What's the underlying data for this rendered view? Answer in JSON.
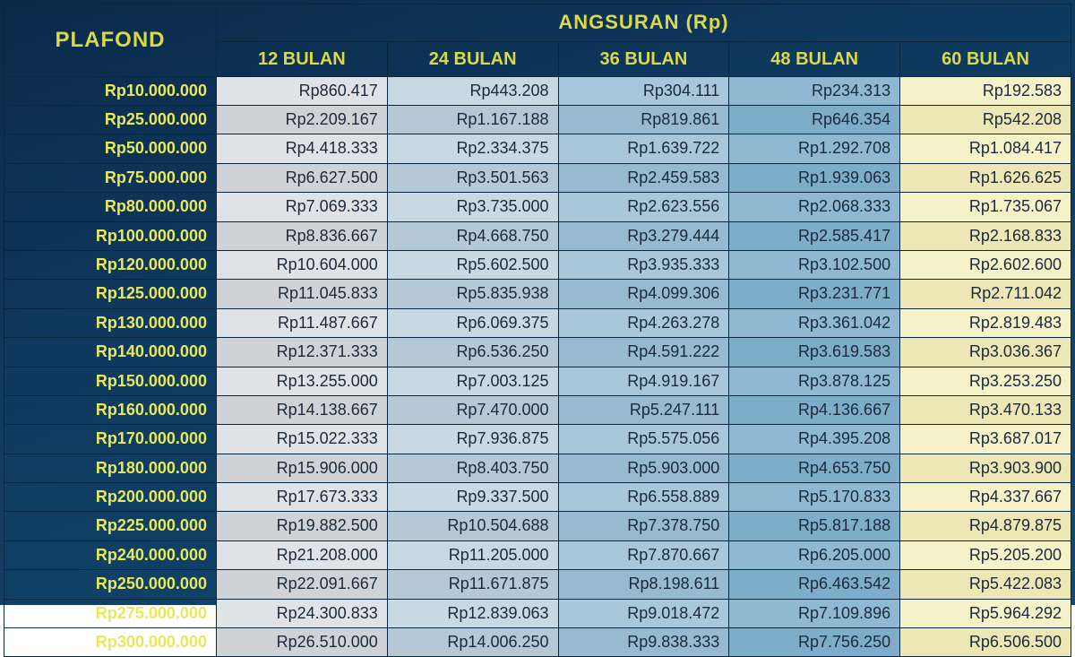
{
  "table": {
    "type": "table",
    "headers": {
      "plafond": "PLAFOND",
      "angsuran": "ANGSURAN (Rp)",
      "months": [
        "12 BULAN",
        "24 BULAN",
        "36 BULAN",
        "48 BULAN",
        "60 BULAN"
      ]
    },
    "column_colors": [
      "#dfe3e6",
      "#c9d9e4",
      "#a9c7da",
      "#8fb9d2",
      "#f5f1c8"
    ],
    "column_colors_alt": [
      "#cfd3d6",
      "#b5c8d6",
      "#97bad0",
      "#7dadc9",
      "#ece7b4"
    ],
    "header_text_color": "#d9d94a",
    "plafond_text_color": "#e8e85a",
    "cell_text_color": "#1a2a3a",
    "border_color": "#0a2742",
    "background_gradient": [
      "#0a2a4a",
      "#0f3a5f",
      "#134a70"
    ],
    "header_fontsize": 20,
    "cell_fontsize": 18,
    "rows": [
      {
        "plafond": "Rp10.000.000",
        "v": [
          "Rp860.417",
          "Rp443.208",
          "Rp304.111",
          "Rp234.313",
          "Rp192.583"
        ]
      },
      {
        "plafond": "Rp25.000.000",
        "v": [
          "Rp2.209.167",
          "Rp1.167.188",
          "Rp819.861",
          "Rp646.354",
          "Rp542.208"
        ]
      },
      {
        "plafond": "Rp50.000.000",
        "v": [
          "Rp4.418.333",
          "Rp2.334.375",
          "Rp1.639.722",
          "Rp1.292.708",
          "Rp1.084.417"
        ]
      },
      {
        "plafond": "Rp75.000.000",
        "v": [
          "Rp6.627.500",
          "Rp3.501.563",
          "Rp2.459.583",
          "Rp1.939.063",
          "Rp1.626.625"
        ]
      },
      {
        "plafond": "Rp80.000.000",
        "v": [
          "Rp7.069.333",
          "Rp3.735.000",
          "Rp2.623.556",
          "Rp2.068.333",
          "Rp1.735.067"
        ]
      },
      {
        "plafond": "Rp100.000.000",
        "v": [
          "Rp8.836.667",
          "Rp4.668.750",
          "Rp3.279.444",
          "Rp2.585.417",
          "Rp2.168.833"
        ]
      },
      {
        "plafond": "Rp120.000.000",
        "v": [
          "Rp10.604.000",
          "Rp5.602.500",
          "Rp3.935.333",
          "Rp3.102.500",
          "Rp2.602.600"
        ]
      },
      {
        "plafond": "Rp125.000.000",
        "v": [
          "Rp11.045.833",
          "Rp5.835.938",
          "Rp4.099.306",
          "Rp3.231.771",
          "Rp2.711.042"
        ]
      },
      {
        "plafond": "Rp130.000.000",
        "v": [
          "Rp11.487.667",
          "Rp6.069.375",
          "Rp4.263.278",
          "Rp3.361.042",
          "Rp2.819.483"
        ]
      },
      {
        "plafond": "Rp140.000.000",
        "v": [
          "Rp12.371.333",
          "Rp6.536.250",
          "Rp4.591.222",
          "Rp3.619.583",
          "Rp3.036.367"
        ]
      },
      {
        "plafond": "Rp150.000.000",
        "v": [
          "Rp13.255.000",
          "Rp7.003.125",
          "Rp4.919.167",
          "Rp3.878.125",
          "Rp3.253.250"
        ]
      },
      {
        "plafond": "Rp160.000.000",
        "v": [
          "Rp14.138.667",
          "Rp7.470.000",
          "Rp5.247.111",
          "Rp4.136.667",
          "Rp3.470.133"
        ]
      },
      {
        "plafond": "Rp170.000.000",
        "v": [
          "Rp15.022.333",
          "Rp7.936.875",
          "Rp5.575.056",
          "Rp4.395.208",
          "Rp3.687.017"
        ]
      },
      {
        "plafond": "Rp180.000.000",
        "v": [
          "Rp15.906.000",
          "Rp8.403.750",
          "Rp5.903.000",
          "Rp4.653.750",
          "Rp3.903.900"
        ]
      },
      {
        "plafond": "Rp200.000.000",
        "v": [
          "Rp17.673.333",
          "Rp9.337.500",
          "Rp6.558.889",
          "Rp5.170.833",
          "Rp4.337.667"
        ]
      },
      {
        "plafond": "Rp225.000.000",
        "v": [
          "Rp19.882.500",
          "Rp10.504.688",
          "Rp7.378.750",
          "Rp5.817.188",
          "Rp4.879.875"
        ]
      },
      {
        "plafond": "Rp240.000.000",
        "v": [
          "Rp21.208.000",
          "Rp11.205.000",
          "Rp7.870.667",
          "Rp6.205.000",
          "Rp5.205.200"
        ]
      },
      {
        "plafond": "Rp250.000.000",
        "v": [
          "Rp22.091.667",
          "Rp11.671.875",
          "Rp8.198.611",
          "Rp6.463.542",
          "Rp5.422.083"
        ]
      },
      {
        "plafond": "Rp275.000.000",
        "v": [
          "Rp24.300.833",
          "Rp12.839.063",
          "Rp9.018.472",
          "Rp7.109.896",
          "Rp5.964.292"
        ]
      },
      {
        "plafond": "Rp300.000.000",
        "v": [
          "Rp26.510.000",
          "Rp14.006.250",
          "Rp9.838.333",
          "Rp7.756.250",
          "Rp6.506.500"
        ]
      }
    ]
  }
}
